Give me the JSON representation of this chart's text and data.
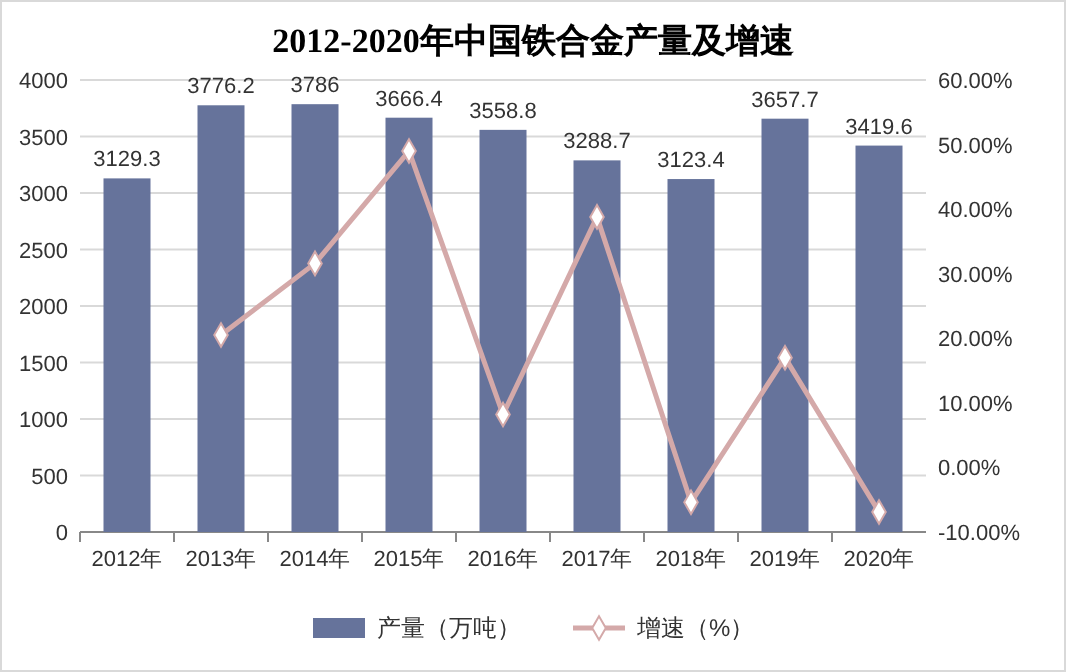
{
  "chart_data": {
    "type": "bar",
    "title": "2012-2020年中国铁合金产量及增速",
    "categories": [
      "2012年",
      "2013年",
      "2014年",
      "2015年",
      "2016年",
      "2017年",
      "2018年",
      "2019年",
      "2020年"
    ],
    "series": [
      {
        "name": "产量（万吨）",
        "color": "#66739b",
        "values": [
          3129.3,
          3776.2,
          3786,
          3666.4,
          3558.8,
          3288.7,
          3123.4,
          3657.7,
          3419.6
        ],
        "value_labels": [
          "3129.3",
          "3776.2",
          "3786",
          "3666.4",
          "3558.8",
          "3288.7",
          "3123.4",
          "3657.7",
          "3419.6"
        ]
      },
      {
        "name": "增速（%）",
        "type": "line",
        "axis": "y2",
        "color": "#d4a9a9",
        "marker": "diamond",
        "values": [
          null,
          20.5,
          31.6,
          49.0,
          8.2,
          38.8,
          -5.4,
          17.0,
          -6.9
        ]
      }
    ],
    "ylim": [
      0,
      4000
    ],
    "yticks": [
      0,
      500,
      1000,
      1500,
      2000,
      2500,
      3000,
      3500,
      4000
    ],
    "y2lim": [
      -10,
      60
    ],
    "y2ticks": [
      {
        "value": -10,
        "label": "-10.00%"
      },
      {
        "value": 0,
        "label": "0.00%"
      },
      {
        "value": 10,
        "label": "10.00%"
      },
      {
        "value": 20,
        "label": "20.00%"
      },
      {
        "value": 30,
        "label": "30.00%"
      },
      {
        "value": 40,
        "label": "40.00%"
      },
      {
        "value": 50,
        "label": "50.00%"
      },
      {
        "value": 60,
        "label": "60.00%"
      }
    ],
    "grid": "y",
    "legend": "bottom"
  }
}
